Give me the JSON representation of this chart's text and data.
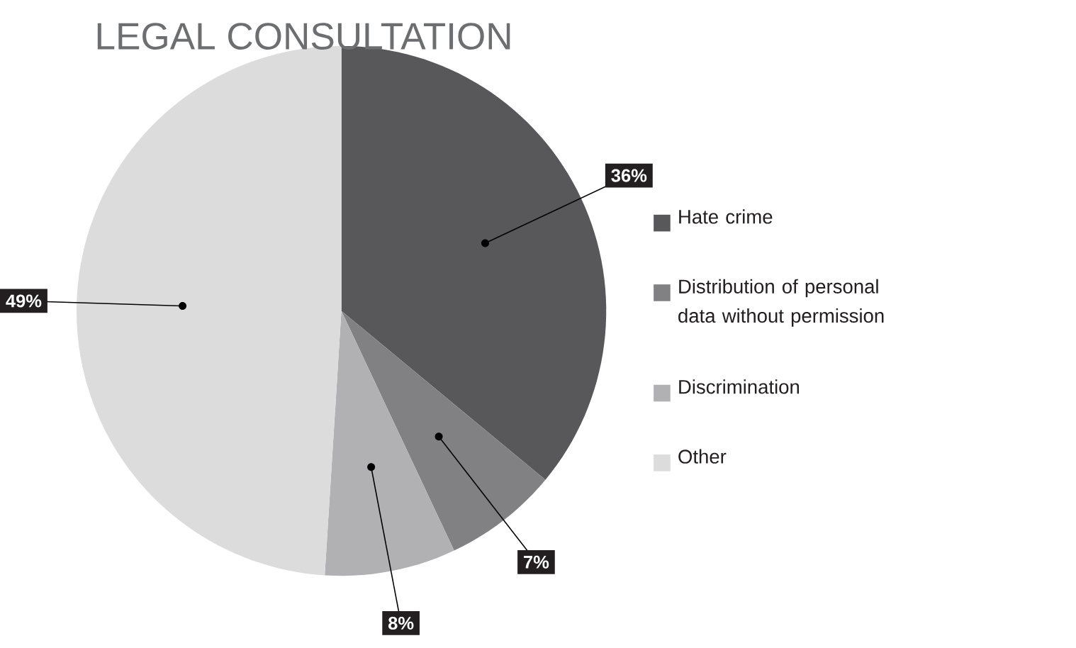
{
  "chart_data": {
    "type": "pie",
    "title": "LEGAL CONSULTATION",
    "categories": [
      "Hate crime",
      "Distribution of personal data without permission",
      "Discrimination",
      "Other"
    ],
    "values": [
      36,
      7,
      8,
      49
    ],
    "colors": [
      "#58585a",
      "#818183",
      "#b1b1b3",
      "#dcdcdd"
    ],
    "value_labels": [
      "36%",
      "7%",
      "8%",
      "49%"
    ],
    "legend": "right"
  }
}
